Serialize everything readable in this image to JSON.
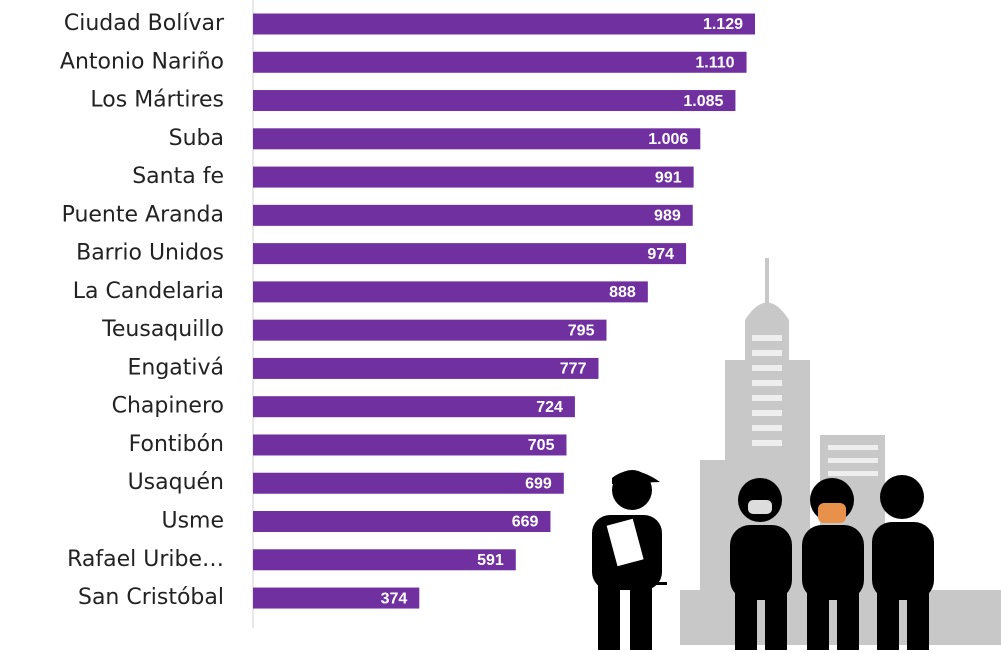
{
  "chart_data": {
    "type": "bar",
    "orientation": "horizontal",
    "categories": [
      "Ciudad Bolívar",
      "Antonio Nariño",
      "Los Mártires",
      "Suba",
      "Santa fe",
      "Puente Aranda",
      "Barrio Unidos",
      "La Candelaria",
      "Teusaquillo",
      "Engativá",
      "Chapinero",
      "Fontibón",
      "Usaquén",
      "Usme",
      "Rafael Uribe…",
      "San Cristóbal"
    ],
    "values": [
      1129,
      1110,
      1085,
      1006,
      991,
      989,
      974,
      888,
      795,
      777,
      724,
      705,
      699,
      669,
      591,
      374
    ],
    "value_labels": [
      "1.129",
      "1.110",
      "1.085",
      "1.006",
      "991",
      "989",
      "974",
      "888",
      "795",
      "777",
      "724",
      "705",
      "699",
      "669",
      "591",
      "374"
    ],
    "color": "#7030a0"
  }
}
